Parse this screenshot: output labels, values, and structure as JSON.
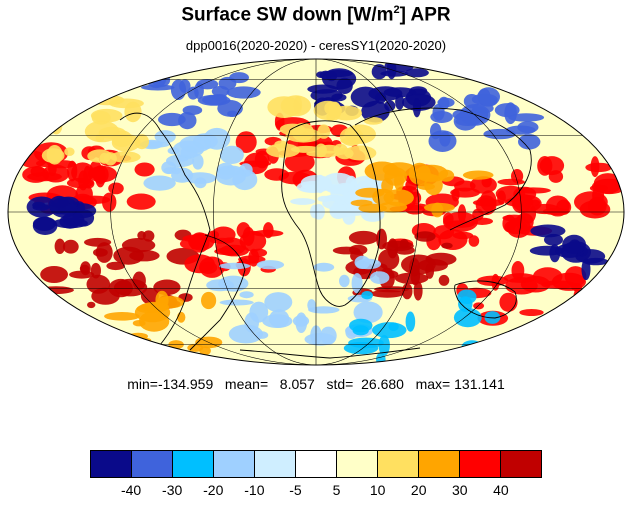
{
  "header": {
    "title_main": "Surface SW down [W/m",
    "title_sup": "2",
    "title_end": "]  APR",
    "subtitle": "dpp0016(2020-2020) - ceresSY1(2020-2020)"
  },
  "stats": {
    "text": "min=-134.959   mean=   8.057   std=  26.680   max= 131.141"
  },
  "map": {
    "projection": "mollweide",
    "coastlines_color": "#000000",
    "graticule_color": "#000000",
    "land_ocean": "field overlay"
  },
  "colorbar": {
    "colors": [
      "#0a0a8a",
      "#3f63dc",
      "#00bfff",
      "#9fd0ff",
      "#cfeeff",
      "#ffffff",
      "#ffffc8",
      "#ffe060",
      "#ffa500",
      "#ff0000",
      "#c00000"
    ],
    "labels": [
      "-40",
      "-30",
      "-20",
      "-10",
      "-5",
      "5",
      "10",
      "20",
      "30",
      "40"
    ]
  }
}
